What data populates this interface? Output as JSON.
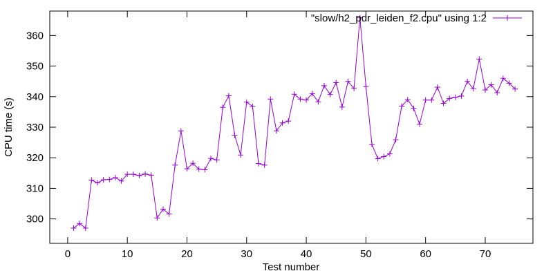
{
  "chart_data": {
    "type": "line",
    "xlabel": "Test number",
    "ylabel": "CPU time (s)",
    "xlim": [
      -3,
      78
    ],
    "ylim": [
      292,
      368
    ],
    "xticks": [
      0,
      10,
      20,
      30,
      40,
      50,
      60,
      70
    ],
    "yticks": [
      300,
      310,
      320,
      330,
      340,
      350,
      360
    ],
    "grid": false,
    "legend_position": "top-right",
    "series": [
      {
        "name": "\"slow/h2_pdr_leiden_f2.cpu\" using 1:2",
        "color": "#9400d3",
        "marker": "plus",
        "x": [
          1,
          2,
          3,
          4,
          5,
          6,
          7,
          8,
          9,
          10,
          11,
          12,
          13,
          14,
          15,
          16,
          17,
          18,
          19,
          20,
          21,
          22,
          23,
          24,
          25,
          26,
          27,
          28,
          29,
          30,
          31,
          32,
          33,
          34,
          35,
          36,
          37,
          38,
          39,
          40,
          41,
          42,
          43,
          44,
          45,
          46,
          47,
          48,
          49,
          50,
          51,
          52,
          53,
          54,
          55,
          56,
          57,
          58,
          59,
          60,
          61,
          62,
          63,
          64,
          65,
          66,
          67,
          68,
          69,
          70,
          71,
          72,
          73,
          74,
          75
        ],
        "y": [
          297,
          298.5,
          297,
          312.7,
          311.8,
          312.8,
          312.9,
          313.5,
          312.4,
          314.6,
          314.6,
          314.2,
          314.7,
          314.3,
          300.3,
          303.2,
          301.6,
          317.6,
          328.8,
          316.4,
          318.2,
          316.3,
          316.1,
          319.8,
          319.3,
          336.5,
          340.3,
          327.4,
          320.9,
          338.2,
          336.8,
          318.1,
          317.6,
          339.2,
          328.8,
          331.4,
          332,
          340.8,
          339.2,
          338.9,
          341,
          338.3,
          343.6,
          340.7,
          344.6,
          336.6,
          345,
          342.7,
          365.8,
          343.3,
          324.4,
          319.7,
          320.4,
          321.3,
          325.9,
          336.9,
          339,
          336.2,
          331,
          338.9,
          338.9,
          343.1,
          337.8,
          339.4,
          339.8,
          340.2,
          345,
          342.6,
          352.3,
          342.2,
          343.9,
          341.3,
          346,
          344.4,
          342.5
        ]
      }
    ]
  }
}
